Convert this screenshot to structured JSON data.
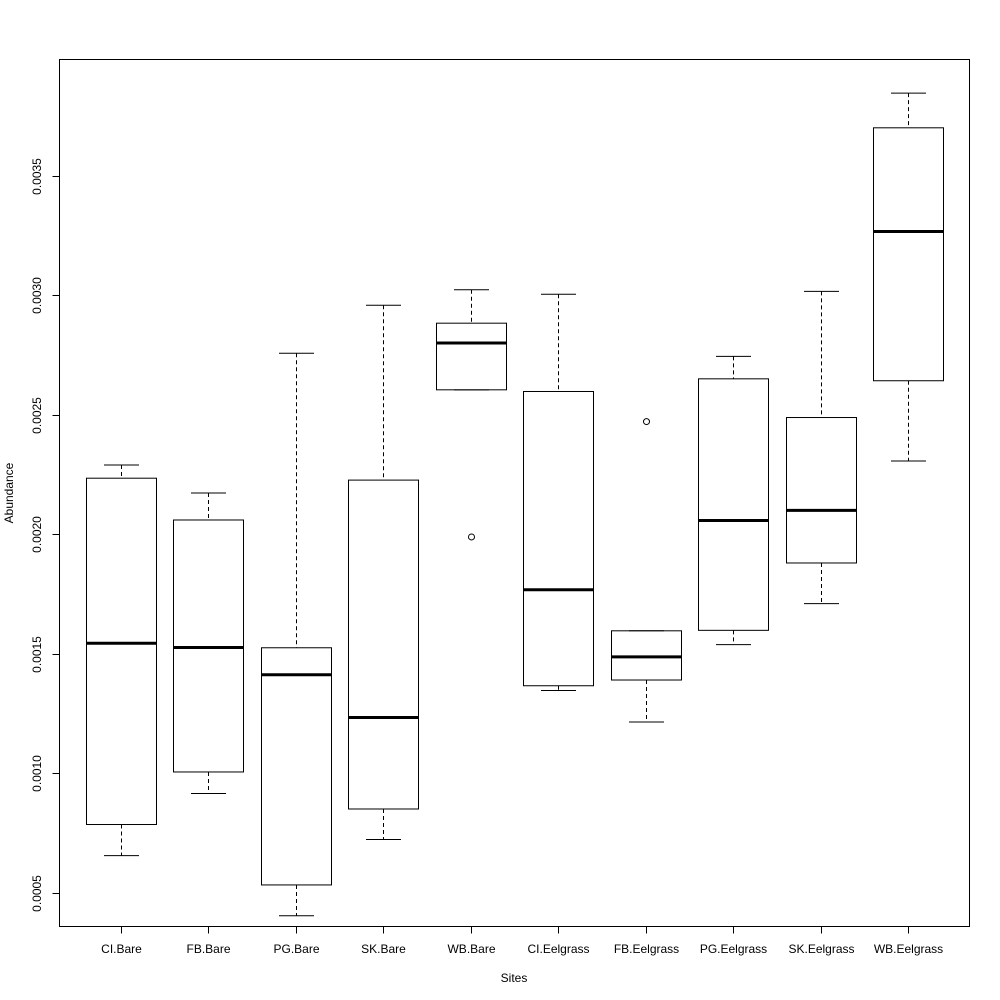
{
  "chart_data": {
    "type": "boxplot",
    "title": "",
    "xlabel": "Sites",
    "ylabel": "Abundance",
    "ylim": [
      0.000358,
      0.003988
    ],
    "yticks": [
      "0.0005",
      "0.0010",
      "0.0015",
      "0.0020",
      "0.0025",
      "0.0030",
      "0.0035"
    ],
    "grid": false,
    "categories": [
      "CI.Bare",
      "FB.Bare",
      "PG.Bare",
      "SK.Bare",
      "WB.Bare",
      "CI.Eelgrass",
      "FB.Eelgrass",
      "PG.Eelgrass",
      "SK.Eelgrass",
      "WB.Eelgrass"
    ],
    "boxes": [
      {
        "whisker_low": 0.000655,
        "q1": 0.000785,
        "median": 0.001544,
        "q3": 0.002235,
        "whisker_high": 0.00229,
        "outliers": []
      },
      {
        "whisker_low": 0.000915,
        "q1": 0.001005,
        "median": 0.001526,
        "q3": 0.00206,
        "whisker_high": 0.002173,
        "outliers": []
      },
      {
        "whisker_low": 0.000403,
        "q1": 0.000532,
        "median": 0.001412,
        "q3": 0.001525,
        "whisker_high": 0.002758,
        "outliers": []
      },
      {
        "whisker_low": 0.000722,
        "q1": 0.00085,
        "median": 0.001233,
        "q3": 0.002227,
        "whisker_high": 0.002959,
        "outliers": []
      },
      {
        "whisker_low": 0.002605,
        "q1": 0.002605,
        "median": 0.002801,
        "q3": 0.002884,
        "whisker_high": 0.003024,
        "outliers": [
          0.001989
        ]
      },
      {
        "whisker_low": 0.001346,
        "q1": 0.001366,
        "median": 0.001768,
        "q3": 0.002598,
        "whisker_high": 0.003005,
        "outliers": []
      },
      {
        "whisker_low": 0.001214,
        "q1": 0.00139,
        "median": 0.001487,
        "q3": 0.001596,
        "whisker_high": 0.001596,
        "outliers": [
          0.002472
        ]
      },
      {
        "whisker_low": 0.001538,
        "q1": 0.001598,
        "median": 0.002058,
        "q3": 0.002651,
        "whisker_high": 0.002745,
        "outliers": []
      },
      {
        "whisker_low": 0.00171,
        "q1": 0.00188,
        "median": 0.0021,
        "q3": 0.002489,
        "whisker_high": 0.003017,
        "outliers": []
      },
      {
        "whisker_low": 0.002307,
        "q1": 0.002643,
        "median": 0.003268,
        "q3": 0.003702,
        "whisker_high": 0.003847,
        "outliers": []
      }
    ]
  }
}
